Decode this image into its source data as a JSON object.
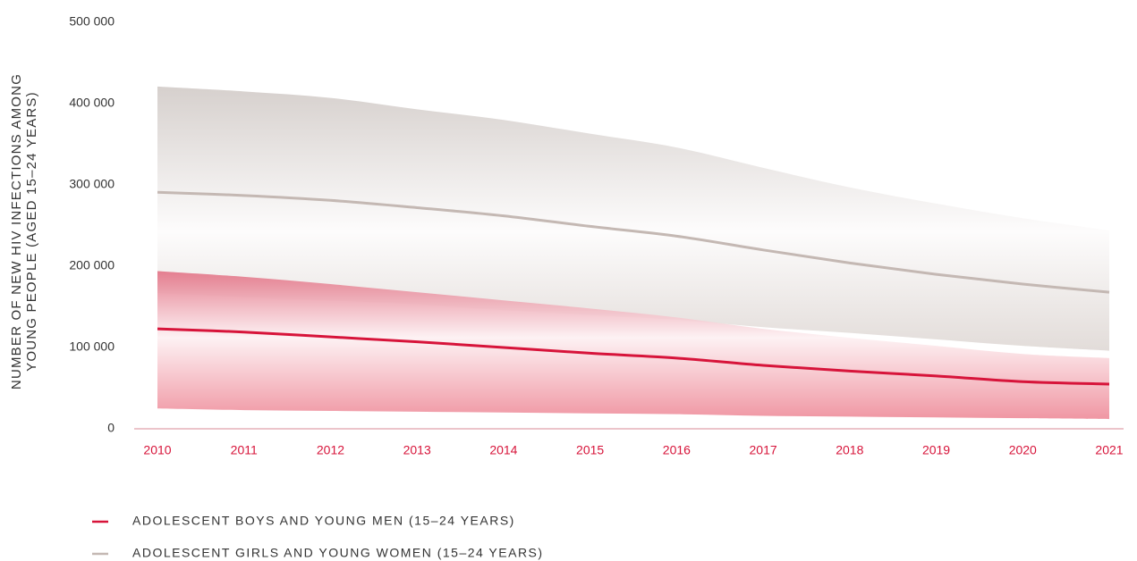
{
  "chart_data": {
    "type": "line",
    "ylabel": "NUMBER OF NEW HIV INFECTIONS AMONG YOUNG PEOPLE (AGED 15–24 YEARS)",
    "categories": [
      "2010",
      "2011",
      "2012",
      "2013",
      "2014",
      "2015",
      "2016",
      "2017",
      "2018",
      "2019",
      "2020",
      "2021"
    ],
    "ylim": [
      0,
      500000
    ],
    "yticks": [
      0,
      {
        "value": 100000,
        "label": "100 000"
      },
      {
        "value": 200000,
        "label": "200 000"
      },
      {
        "value": 300000,
        "label": "300 000"
      },
      {
        "value": 400000,
        "label": "400 000"
      },
      {
        "value": 500000,
        "label": "500 000"
      }
    ],
    "series": [
      {
        "name": "ADOLESCENT GIRLS AND YOUNG WOMEN (15–24 YEARS)",
        "color": "#c4b8b3",
        "values": [
          291000,
          287000,
          281000,
          272000,
          262000,
          249000,
          237000,
          220000,
          204000,
          190000,
          178000,
          168000
        ],
        "upper": [
          421000,
          415000,
          407000,
          393000,
          380000,
          363000,
          346000,
          321000,
          297000,
          277000,
          259000,
          244000
        ],
        "lower": [
          167000,
          162000,
          158000,
          153000,
          146000,
          140000,
          134000,
          125000,
          118000,
          110000,
          102000,
          96000
        ]
      },
      {
        "name": "ADOLESCENT BOYS AND YOUNG MEN (15–24 YEARS)",
        "color": "#d7143a",
        "values": [
          123000,
          119000,
          113000,
          107000,
          100000,
          93000,
          87000,
          78000,
          71000,
          65000,
          58000,
          55000
        ],
        "upper": [
          194000,
          187000,
          178000,
          168000,
          158000,
          148000,
          137000,
          123000,
          112000,
          102000,
          92000,
          87000
        ],
        "lower": [
          25000,
          23000,
          22000,
          21000,
          20000,
          19000,
          18000,
          16000,
          15000,
          14000,
          13000,
          12000
        ]
      }
    ]
  }
}
